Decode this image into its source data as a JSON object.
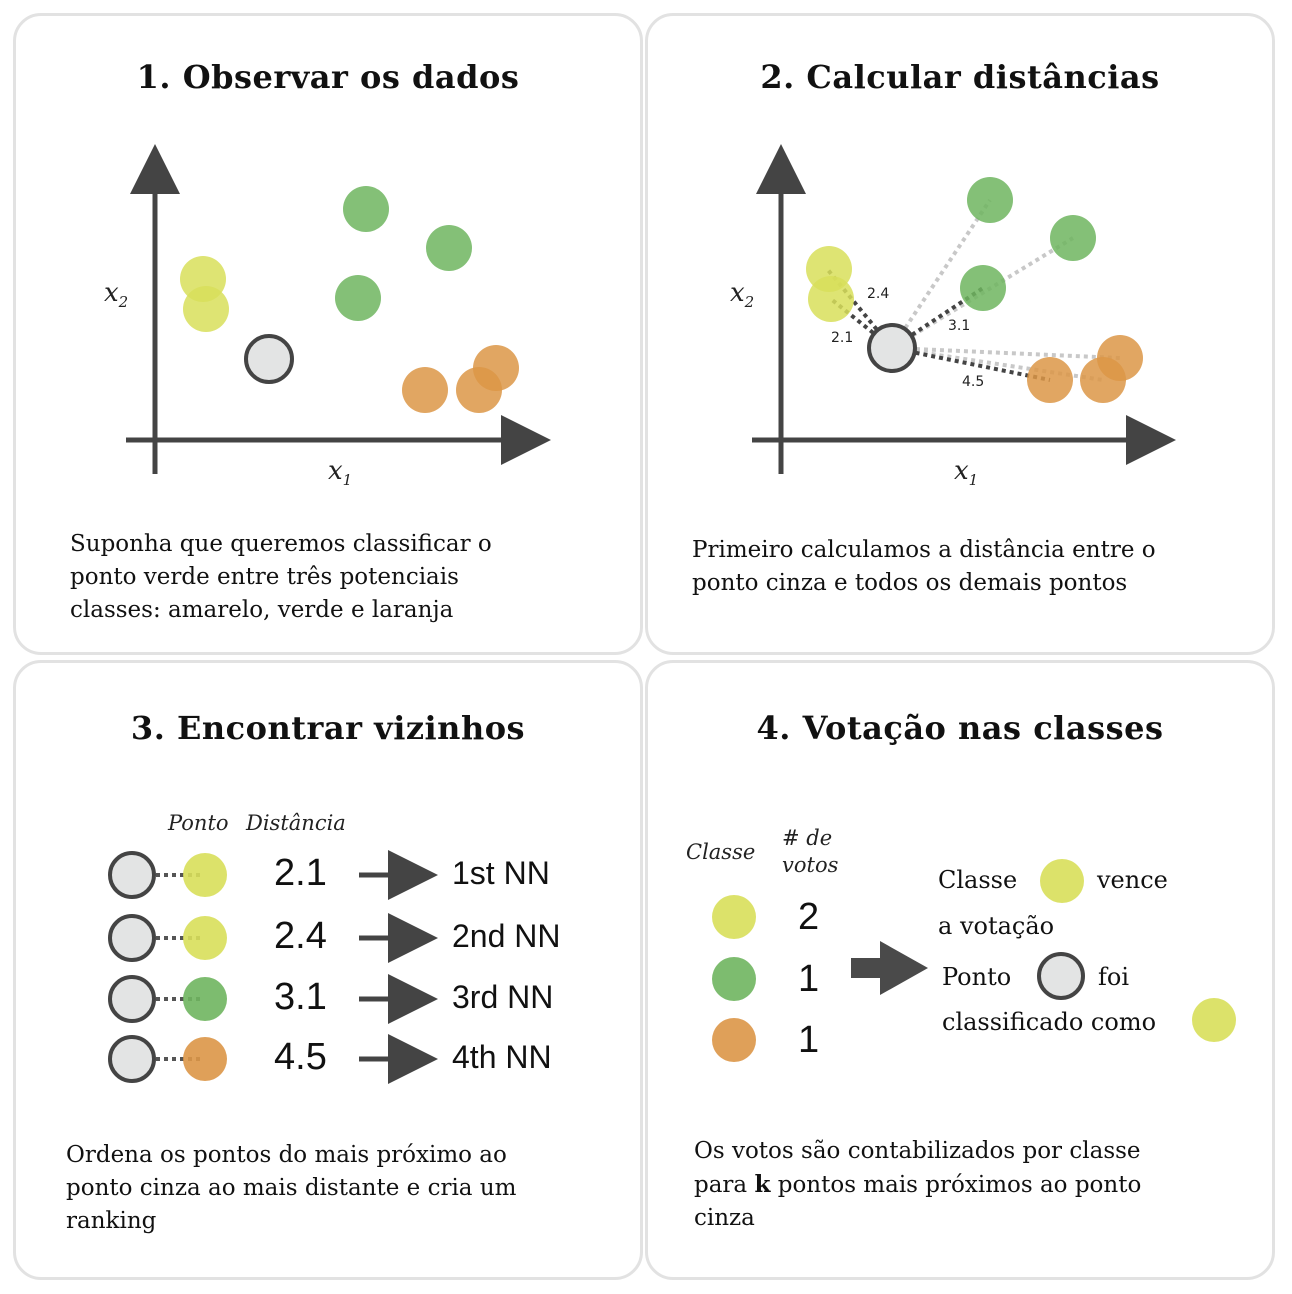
{
  "colors": {
    "yellow": "#d8df5a",
    "green": "#6fb55f",
    "orange": "#dc9647",
    "gray": "#e3e4e4",
    "axis": "#444444"
  },
  "panel1": {
    "title": "1. Observar os dados",
    "x1_label": "x",
    "x1_sub": "1",
    "x2_label": "x",
    "x2_sub": "2",
    "desc": "Suponha que queremos classificar o\nponto verde entre três potenciais\nclasses: amarelo, verde e laranja"
  },
  "panel2": {
    "title": "2. Calcular distâncias",
    "x1_label": "x",
    "x1_sub": "1",
    "x2_label": "x",
    "x2_sub": "2",
    "distances": [
      "2.4",
      "2.1",
      "3.1",
      "4.5"
    ],
    "desc": "Primeiro calculamos a distância entre o\nponto cinza e todos os demais pontos"
  },
  "panel3": {
    "title": "3. Encontrar vizinhos",
    "col_ponto": "Ponto",
    "col_distancia": "Distância",
    "rows": [
      {
        "distance": "2.1",
        "rank": "1st NN",
        "color": "yellow"
      },
      {
        "distance": "2.4",
        "rank": "2nd NN",
        "color": "yellow"
      },
      {
        "distance": "3.1",
        "rank": "3rd NN",
        "color": "green"
      },
      {
        "distance": "4.5",
        "rank": "4th NN",
        "color": "orange"
      }
    ],
    "desc": "Ordena os pontos  do mais próximo ao\nponto cinza ao mais distante e cria um\nranking"
  },
  "panel4": {
    "title": "4. Votação nas classes",
    "col_classe": "Classe",
    "col_votos_1": "# de",
    "col_votos_2": "votos",
    "votes": [
      {
        "color": "yellow",
        "count": "2"
      },
      {
        "color": "green",
        "count": "1"
      },
      {
        "color": "orange",
        "count": "1"
      }
    ],
    "result_classe": "Classe",
    "result_vence": "vence",
    "result_votacao": "a votação",
    "result_ponto": "Ponto",
    "result_foi": "foi",
    "result_classificado": "classificado como",
    "desc_line1": "Os votos são contabilizados por classe",
    "desc_para": "para ",
    "desc_k": "k",
    "desc_line2_rest": " pontos mais próximos ao ponto",
    "desc_line3": "cinza"
  }
}
